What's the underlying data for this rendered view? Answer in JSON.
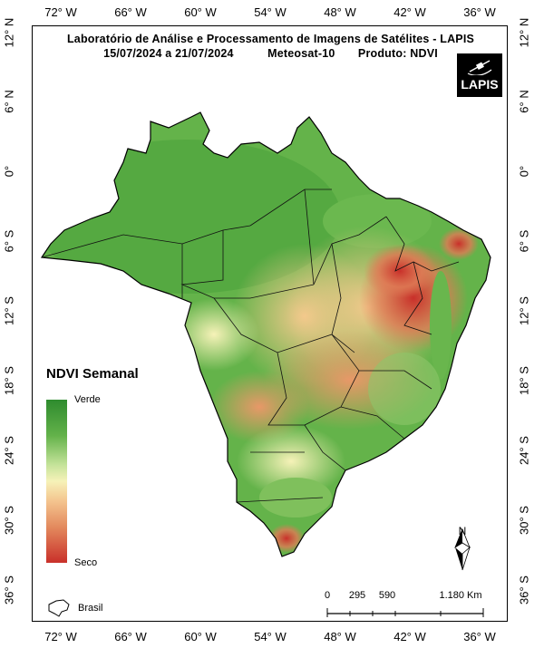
{
  "title_line1": "Laboratório de Análise e Processamento de Imagens de Satélites - LAPIS",
  "period": "15/07/2024  a  21/07/2024",
  "satellite": "Meteosat-10",
  "product": "Produto: NDVI",
  "logo_text": "LAPIS",
  "legend": {
    "title": "NDVI Semanal",
    "high_label": "Verde",
    "low_label": "Seco",
    "high_color": "#2e8b2e",
    "mid_color": "#f6f2b8",
    "low_color": "#c9302a"
  },
  "longitude_ticks": [
    "72° W",
    "66° W",
    "60° W",
    "54° W",
    "48° W",
    "42° W",
    "36° W"
  ],
  "latitude_ticks": [
    "12° N",
    "6° N",
    "0°",
    "6° S",
    "12° S",
    "18° S",
    "24° S",
    "30° S",
    "36° S"
  ],
  "north_label": "N",
  "scale": {
    "labels": [
      "0",
      "295",
      "590",
      "1.180 Km"
    ]
  },
  "inset_label": "Brasil"
}
